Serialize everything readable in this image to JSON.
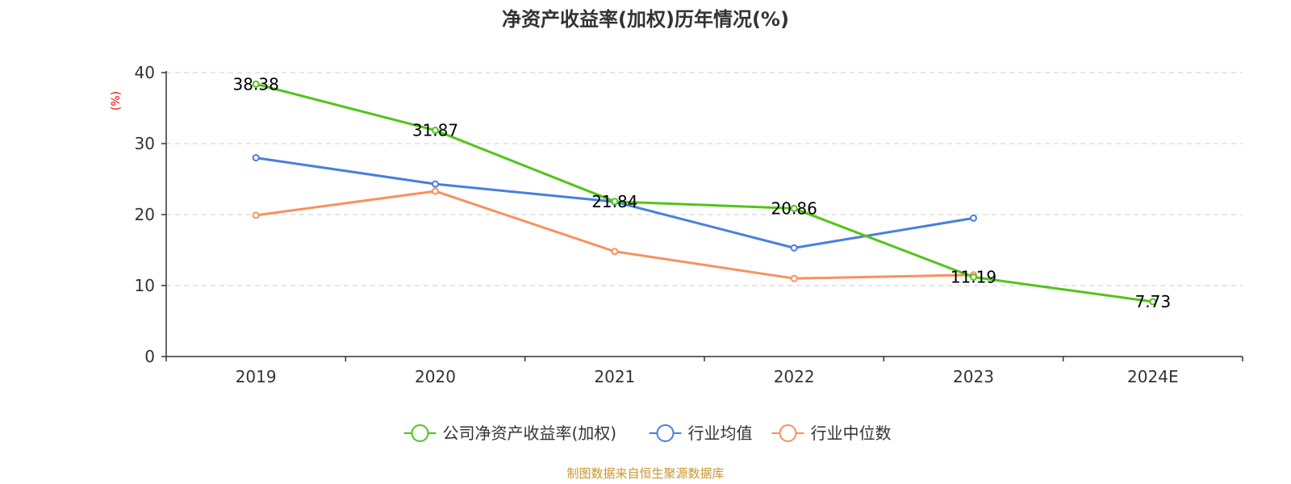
{
  "chart_data": {
    "type": "line",
    "title": "净资产收益率(加权)历年情况(%)",
    "xlabel": "",
    "ylabel": "(%)",
    "ylabel_color": "#ff0000",
    "ylim": [
      0,
      40
    ],
    "yticks": [
      0,
      10,
      20,
      30,
      40
    ],
    "grid": true,
    "legend_position": "bottom-center",
    "categories": [
      "2019",
      "2020",
      "2021",
      "2022",
      "2023",
      "2024E"
    ],
    "series": [
      {
        "name": "公司净资产收益率(加权)",
        "color": "#52c41a",
        "values": [
          38.38,
          31.87,
          21.84,
          20.86,
          11.19,
          7.73
        ],
        "labels": [
          "38.38",
          "31.87",
          "21.84",
          "20.86",
          "11.19",
          "7.73"
        ]
      },
      {
        "name": "行业均值",
        "color": "#4a7fdc",
        "values": [
          28.0,
          24.3,
          21.8,
          15.3,
          19.5,
          null
        ]
      },
      {
        "name": "行业中位数",
        "color": "#f7915e",
        "values": [
          19.9,
          23.3,
          14.8,
          11.0,
          11.5,
          null
        ]
      }
    ],
    "source": "制图数据来自恒生聚源数据库",
    "source_color": "#c8962e"
  }
}
